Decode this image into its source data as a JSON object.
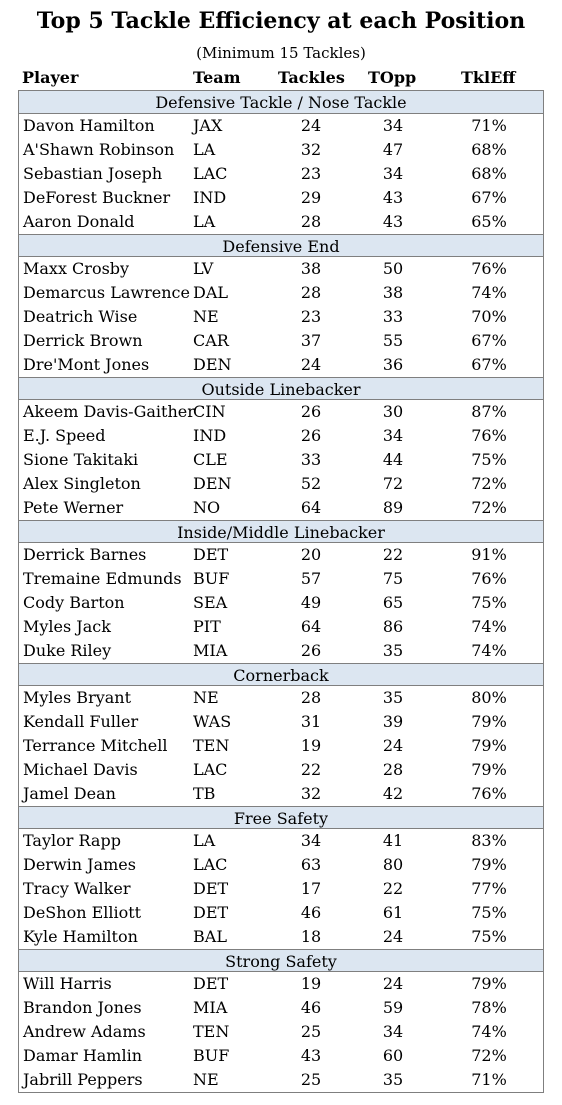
{
  "title": "Top 5 Tackle Efficiency at each Position",
  "subtitle": "(Minimum 15 Tackles)",
  "columns": {
    "player": "Player",
    "team": "Team",
    "tackles": "Tackles",
    "topp": "TOpp",
    "tkleff": "TklEff"
  },
  "sections": [
    {
      "name": "Defensive Tackle / Nose Tackle",
      "rows": [
        {
          "player": "Davon Hamilton",
          "team": "JAX",
          "tackles": "24",
          "topp": "34",
          "tkleff": "71%"
        },
        {
          "player": "A'Shawn Robinson",
          "team": "LA",
          "tackles": "32",
          "topp": "47",
          "tkleff": "68%"
        },
        {
          "player": "Sebastian Joseph",
          "team": "LAC",
          "tackles": "23",
          "topp": "34",
          "tkleff": "68%"
        },
        {
          "player": "DeForest Buckner",
          "team": "IND",
          "tackles": "29",
          "topp": "43",
          "tkleff": "67%"
        },
        {
          "player": "Aaron Donald",
          "team": "LA",
          "tackles": "28",
          "topp": "43",
          "tkleff": "65%"
        }
      ]
    },
    {
      "name": "Defensive End",
      "rows": [
        {
          "player": "Maxx Crosby",
          "team": "LV",
          "tackles": "38",
          "topp": "50",
          "tkleff": "76%"
        },
        {
          "player": "Demarcus Lawrence",
          "team": "DAL",
          "tackles": "28",
          "topp": "38",
          "tkleff": "74%"
        },
        {
          "player": "Deatrich Wise",
          "team": "NE",
          "tackles": "23",
          "topp": "33",
          "tkleff": "70%"
        },
        {
          "player": "Derrick Brown",
          "team": "CAR",
          "tackles": "37",
          "topp": "55",
          "tkleff": "67%"
        },
        {
          "player": "Dre'Mont Jones",
          "team": "DEN",
          "tackles": "24",
          "topp": "36",
          "tkleff": "67%"
        }
      ]
    },
    {
      "name": "Outside Linebacker",
      "rows": [
        {
          "player": "Akeem Davis-Gaither",
          "team": "CIN",
          "tackles": "26",
          "topp": "30",
          "tkleff": "87%"
        },
        {
          "player": "E.J. Speed",
          "team": "IND",
          "tackles": "26",
          "topp": "34",
          "tkleff": "76%"
        },
        {
          "player": "Sione Takitaki",
          "team": "CLE",
          "tackles": "33",
          "topp": "44",
          "tkleff": "75%"
        },
        {
          "player": "Alex Singleton",
          "team": "DEN",
          "tackles": "52",
          "topp": "72",
          "tkleff": "72%"
        },
        {
          "player": "Pete Werner",
          "team": "NO",
          "tackles": "64",
          "topp": "89",
          "tkleff": "72%"
        }
      ]
    },
    {
      "name": "Inside/Middle Linebacker",
      "rows": [
        {
          "player": "Derrick Barnes",
          "team": "DET",
          "tackles": "20",
          "topp": "22",
          "tkleff": "91%"
        },
        {
          "player": "Tremaine Edmunds",
          "team": "BUF",
          "tackles": "57",
          "topp": "75",
          "tkleff": "76%"
        },
        {
          "player": "Cody Barton",
          "team": "SEA",
          "tackles": "49",
          "topp": "65",
          "tkleff": "75%"
        },
        {
          "player": "Myles Jack",
          "team": "PIT",
          "tackles": "64",
          "topp": "86",
          "tkleff": "74%"
        },
        {
          "player": "Duke Riley",
          "team": "MIA",
          "tackles": "26",
          "topp": "35",
          "tkleff": "74%"
        }
      ]
    },
    {
      "name": "Cornerback",
      "rows": [
        {
          "player": "Myles Bryant",
          "team": "NE",
          "tackles": "28",
          "topp": "35",
          "tkleff": "80%"
        },
        {
          "player": "Kendall Fuller",
          "team": "WAS",
          "tackles": "31",
          "topp": "39",
          "tkleff": "79%"
        },
        {
          "player": "Terrance Mitchell",
          "team": "TEN",
          "tackles": "19",
          "topp": "24",
          "tkleff": "79%"
        },
        {
          "player": "Michael Davis",
          "team": "LAC",
          "tackles": "22",
          "topp": "28",
          "tkleff": "79%"
        },
        {
          "player": "Jamel Dean",
          "team": "TB",
          "tackles": "32",
          "topp": "42",
          "tkleff": "76%"
        }
      ]
    },
    {
      "name": "Free Safety",
      "rows": [
        {
          "player": "Taylor Rapp",
          "team": "LA",
          "tackles": "34",
          "topp": "41",
          "tkleff": "83%"
        },
        {
          "player": "Derwin James",
          "team": "LAC",
          "tackles": "63",
          "topp": "80",
          "tkleff": "79%"
        },
        {
          "player": "Tracy Walker",
          "team": "DET",
          "tackles": "17",
          "topp": "22",
          "tkleff": "77%"
        },
        {
          "player": "DeShon Elliott",
          "team": "DET",
          "tackles": "46",
          "topp": "61",
          "tkleff": "75%"
        },
        {
          "player": "Kyle Hamilton",
          "team": "BAL",
          "tackles": "18",
          "topp": "24",
          "tkleff": "75%"
        }
      ]
    },
    {
      "name": "Strong Safety",
      "rows": [
        {
          "player": "Will Harris",
          "team": "DET",
          "tackles": "19",
          "topp": "24",
          "tkleff": "79%"
        },
        {
          "player": "Brandon Jones",
          "team": "MIA",
          "tackles": "46",
          "topp": "59",
          "tkleff": "78%"
        },
        {
          "player": "Andrew Adams",
          "team": "TEN",
          "tackles": "25",
          "topp": "34",
          "tkleff": "74%"
        },
        {
          "player": "Damar Hamlin",
          "team": "BUF",
          "tackles": "43",
          "topp": "60",
          "tkleff": "72%"
        },
        {
          "player": "Jabrill Peppers",
          "team": "NE",
          "tackles": "25",
          "topp": "35",
          "tkleff": "71%"
        }
      ]
    }
  ]
}
